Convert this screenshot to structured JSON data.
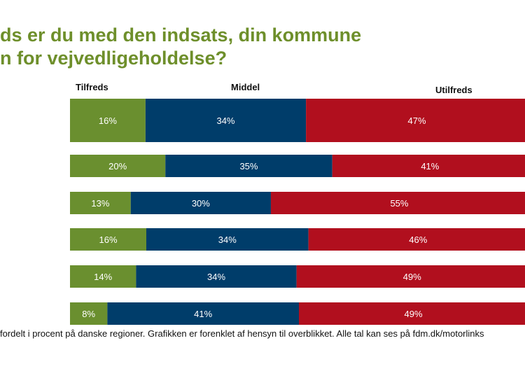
{
  "title_lines": [
    "ds er du med den indsats, din kommune",
    "n for vejvedligeholdelse?"
  ],
  "legend": {
    "satisfied": "Tilfreds",
    "neutral": "Middel",
    "dissatisfied": "Utilfreds"
  },
  "footnote": "fordelt i procent på danske regioner. Grafikken er forenklet af hensyn til overblikket. Alle tal kan ses på fdm.dk/motorlinks",
  "colors": {
    "title": "#6e8f2b",
    "satisfied": "#6a8f2f",
    "neutral": "#003d6a",
    "dissatisfied": "#b10f1e"
  },
  "chart_data": {
    "type": "bar",
    "orientation": "horizontal-stacked",
    "categories": [
      "",
      "",
      "",
      "",
      "",
      ""
    ],
    "series": [
      {
        "name": "Tilfreds",
        "values": [
          16,
          20,
          13,
          16,
          14,
          8
        ],
        "labels": [
          "16%",
          "20%",
          "13%",
          "16%",
          "14%",
          "8%"
        ]
      },
      {
        "name": "Middel",
        "values": [
          34,
          35,
          30,
          34,
          34,
          41
        ],
        "labels": [
          "34%",
          "35%",
          "30%",
          "34%",
          "34%",
          "41%"
        ]
      },
      {
        "name": "Utilfreds",
        "values": [
          47,
          41,
          55,
          46,
          49,
          49
        ],
        "labels": [
          "47%",
          "41%",
          "55%",
          "46%",
          "49%",
          "49%"
        ]
      }
    ],
    "unit": "%",
    "grid": false,
    "legend_position": "top"
  }
}
